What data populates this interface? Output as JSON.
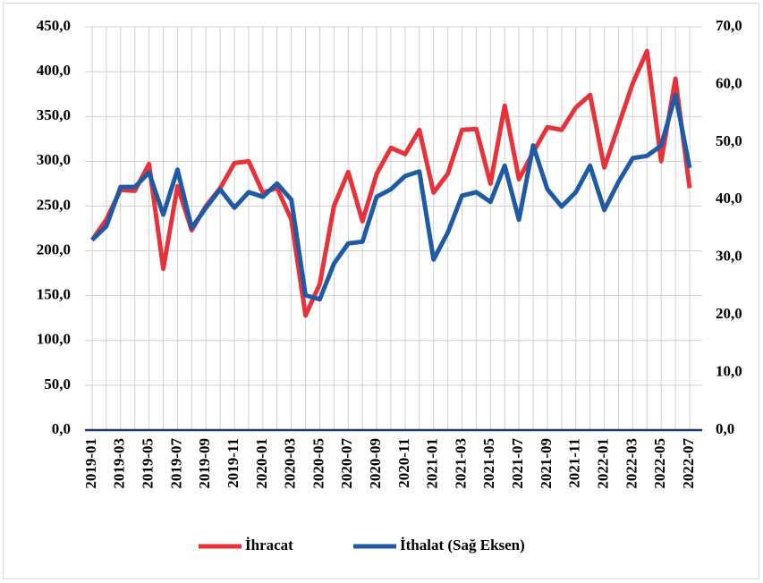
{
  "chart_data": {
    "type": "line",
    "categories": [
      "2019-01",
      null,
      "2019-03",
      null,
      "2019-05",
      null,
      "2019-07",
      null,
      "2019-09",
      null,
      "2019-11",
      null,
      "2020-01",
      null,
      "2020-03",
      null,
      "2020-05",
      null,
      "2020-07",
      null,
      "2020-09",
      null,
      "2020-11",
      null,
      "2021-01",
      null,
      "2021-03",
      null,
      "2021-05",
      null,
      "2021-07",
      null,
      "2021-09",
      null,
      "2021-11",
      null,
      "2022-01",
      null,
      "2022-03",
      null,
      "2022-05",
      null,
      "2022-07"
    ],
    "series": [
      {
        "name": "İhracat",
        "color": "#e8323a",
        "values": [
          212,
          235,
          268,
          267,
          297,
          180,
          272,
          223,
          250,
          270,
          298,
          300,
          265,
          270,
          235,
          128,
          163,
          250,
          288,
          233,
          286,
          315,
          308,
          335,
          265,
          286,
          335,
          336,
          275,
          362,
          280,
          310,
          338,
          335,
          360,
          374,
          293,
          340,
          387,
          423,
          300,
          392,
          270
        ]
      },
      {
        "name": "İthalat (Sağ Eksen)",
        "color": "#1f5aa6",
        "axis": "y2",
        "values": [
          33.0,
          35.4,
          42.2,
          42.2,
          44.7,
          37.4,
          45.2,
          35.1,
          38.6,
          41.8,
          38.6,
          41.3,
          40.5,
          42.8,
          40.0,
          23.4,
          22.7,
          28.9,
          32.4,
          32.7,
          40.5,
          41.8,
          44.1,
          44.9,
          29.6,
          34.3,
          40.7,
          41.3,
          39.6,
          45.9,
          36.5,
          49.4,
          41.8,
          38.8,
          41.3,
          45.9,
          38.2,
          43.1,
          47.2,
          47.6,
          49.4,
          58.2,
          45.5
        ]
      }
    ],
    "ylim": [
      0,
      450
    ],
    "yticks": [
      {
        "value": 0,
        "label": "0,0"
      },
      {
        "value": 50,
        "label": "50,0"
      },
      {
        "value": 100,
        "label": "100,0"
      },
      {
        "value": 150,
        "label": "150,0"
      },
      {
        "value": 200,
        "label": "200,0"
      },
      {
        "value": 250,
        "label": "250,0"
      },
      {
        "value": 300,
        "label": "300,0"
      },
      {
        "value": 350,
        "label": "350,0"
      },
      {
        "value": 400,
        "label": "400,0"
      },
      {
        "value": 450,
        "label": "450,0"
      }
    ],
    "y2lim": [
      0,
      70
    ],
    "y2ticks": [
      {
        "value": 0,
        "label": "0,0"
      },
      {
        "value": 10,
        "label": "10,0"
      },
      {
        "value": 20,
        "label": "20,0"
      },
      {
        "value": 30,
        "label": "30,0"
      },
      {
        "value": 40,
        "label": "40,0"
      },
      {
        "value": 50,
        "label": "50,0"
      },
      {
        "value": 60,
        "label": "60,0"
      },
      {
        "value": 70,
        "label": "70,0"
      }
    ],
    "grid": true,
    "legend": "bottom"
  }
}
